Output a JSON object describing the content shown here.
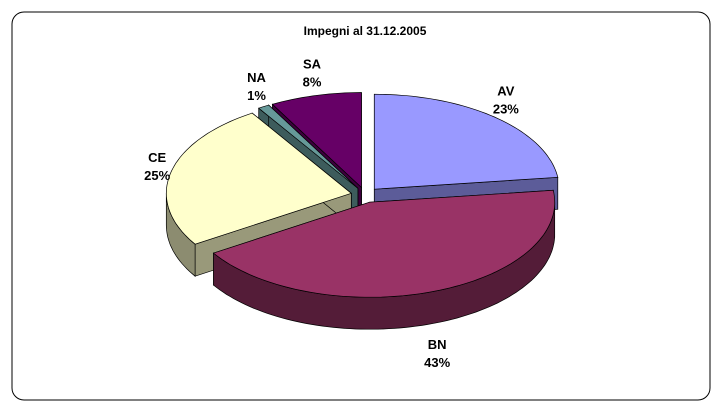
{
  "chart_data": {
    "type": "pie3d",
    "title": "Impegni al 31.12.2005",
    "categories": [
      "AV",
      "BN",
      "CE",
      "NA",
      "SA"
    ],
    "values": [
      23,
      43,
      25,
      1,
      8
    ],
    "value_labels": [
      "23%",
      "43%",
      "25%",
      "1%",
      "8%"
    ],
    "colors": [
      "#9999ff",
      "#993366",
      "#ffffcc",
      "#669999",
      "#660066"
    ]
  }
}
